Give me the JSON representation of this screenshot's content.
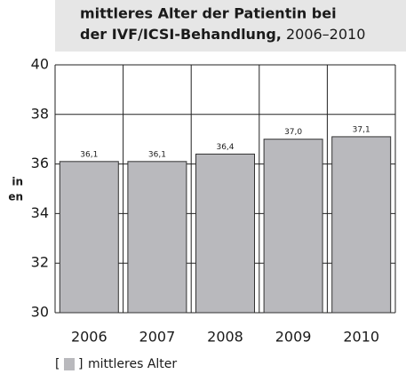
{
  "chart_data": {
    "type": "bar",
    "title": {
      "line1": "mittleres Alter der Patientin bei",
      "line2": "der IVF/ICSI-Behandlung,"
    },
    "period": "2006–2010",
    "ylabel": [
      "in",
      "en"
    ],
    "categories": [
      "2006",
      "2007",
      "2008",
      "2009",
      "2010"
    ],
    "series": [
      {
        "name": "mittleres Alter",
        "color": "#b9b9bd",
        "values": [
          36.1,
          36.1,
          36.4,
          37.0,
          37.1
        ],
        "value_labels": [
          "36,1",
          "36,1",
          "36,4",
          "37,0",
          "37,1"
        ]
      }
    ],
    "ylim": [
      30,
      40
    ],
    "yticks": [
      30,
      32,
      34,
      36,
      38,
      40
    ],
    "grid": true
  }
}
